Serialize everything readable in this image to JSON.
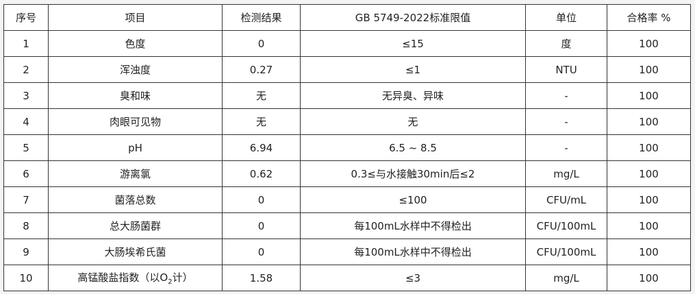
{
  "table": {
    "headers": [
      "序号",
      "项目",
      "检测结果",
      "GB 5749-2022标准限值",
      "单位",
      "合格率 %"
    ],
    "rows": [
      [
        "1",
        "色度",
        "0",
        "≤15",
        "度",
        "100"
      ],
      [
        "2",
        "浑浊度",
        "0.27",
        "≤1",
        "NTU",
        "100"
      ],
      [
        "3",
        "臭和味",
        "无",
        "无异臭、异味",
        "-",
        "100"
      ],
      [
        "4",
        "肉眼可见物",
        "无",
        "无",
        "-",
        "100"
      ],
      [
        "5",
        "pH",
        "6.94",
        "6.5 ~ 8.5",
        "-",
        "100"
      ],
      [
        "6",
        "游离氯",
        "0.62",
        "0.3≤与水接触30min后≤2",
        "mg/L",
        "100"
      ],
      [
        "7",
        "菌落总数",
        "0",
        "≤100",
        "CFU/mL",
        "100"
      ],
      [
        "8",
        "总大肠菌群",
        "0",
        "每100mL水样中不得检出",
        "CFU/100mL",
        "100"
      ],
      [
        "9",
        "大肠埃希氏菌",
        "0",
        "每100mL水样中不得检出",
        "CFU/100mL",
        "100"
      ],
      [
        "10",
        "",
        "1.58",
        "≤3",
        "mg/L",
        "100"
      ]
    ],
    "row10_item": {
      "before": "高锰酸盐指数（以O",
      "sub": "2",
      "after": "计）"
    }
  }
}
